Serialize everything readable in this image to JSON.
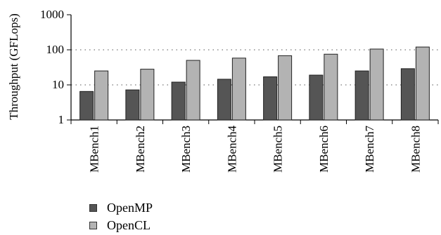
{
  "chart_data": {
    "type": "bar",
    "title": "",
    "xlabel": "",
    "ylabel": "Throughput (GFLops)",
    "yscale": "log",
    "ylim": [
      1,
      1000
    ],
    "yticks": [
      "1",
      "10",
      "100",
      "1000"
    ],
    "grid": "dotted horizontal lines at 10 and 100",
    "legend_position": "bottom-left",
    "categories": [
      "MBench1",
      "MBench2",
      "MBench3",
      "MBench4",
      "MBench5",
      "MBench6",
      "MBench7",
      "MBench8"
    ],
    "series": [
      {
        "name": "OpenMP",
        "color": "#555555",
        "values": [
          6.5,
          7.2,
          12,
          14.5,
          17,
          19,
          25,
          29
        ]
      },
      {
        "name": "OpenCL",
        "color": "#b3b3b3",
        "values": [
          25,
          28,
          50,
          58,
          68,
          75,
          105,
          120
        ]
      }
    ]
  }
}
